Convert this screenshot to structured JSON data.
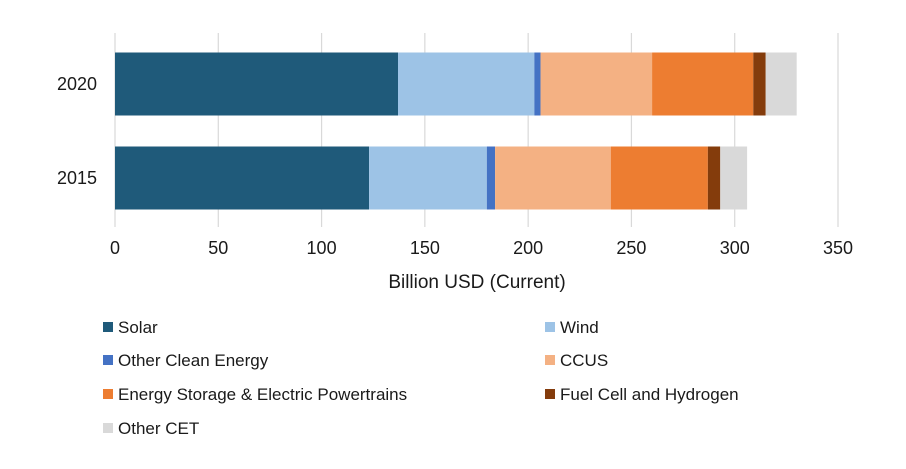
{
  "chart_data": {
    "type": "bar",
    "orientation": "horizontal",
    "stacked": true,
    "title": "",
    "xlabel": "Billion USD (Current)",
    "ylabel": "",
    "xlim": [
      0,
      350
    ],
    "xticks": [
      0,
      50,
      100,
      150,
      200,
      250,
      300,
      350
    ],
    "grid": true,
    "legend_position": "bottom",
    "categories": [
      "2020",
      "2015"
    ],
    "series": [
      {
        "name": "Solar",
        "color": "#1f5a7a",
        "values": [
          137,
          123
        ]
      },
      {
        "name": "Wind",
        "color": "#9dc3e6",
        "values": [
          66,
          57
        ]
      },
      {
        "name": "Other Clean Energy",
        "color": "#4472c4",
        "values": [
          3,
          4
        ]
      },
      {
        "name": "CCUS",
        "color": "#f4b183",
        "values": [
          54,
          56
        ]
      },
      {
        "name": "Energy Storage & Electric Powertrains",
        "color": "#ed7d31",
        "values": [
          49,
          47
        ]
      },
      {
        "name": "Fuel Cell and Hydrogen",
        "color": "#843c0c",
        "values": [
          6,
          6
        ]
      },
      {
        "name": "Other CET",
        "color": "#d9d9d9",
        "values": [
          15,
          13
        ]
      }
    ]
  }
}
